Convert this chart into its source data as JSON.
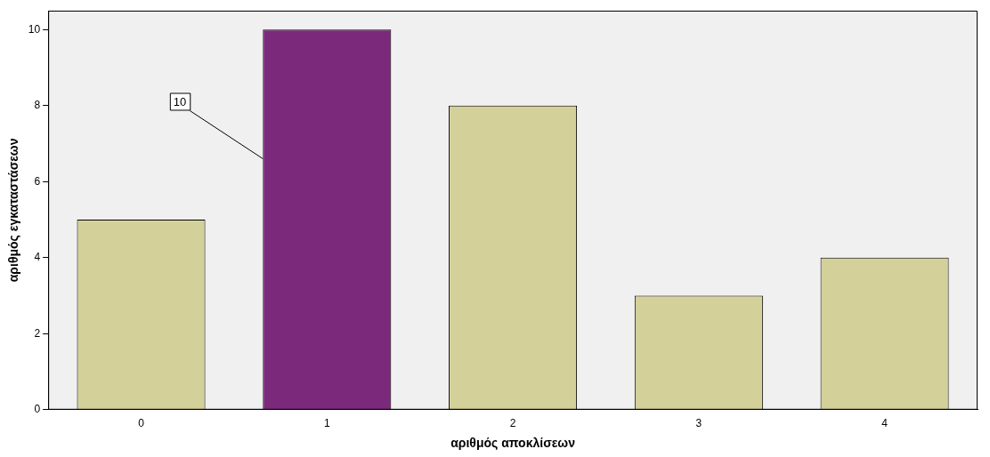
{
  "chart_data": {
    "type": "bar",
    "xlabel": "αριθμός αποκλίσεων",
    "ylabel": "αριθμός εγκαταστάσεων",
    "categories": [
      "0",
      "1",
      "2",
      "3",
      "4"
    ],
    "values": [
      5,
      10,
      8,
      3,
      4
    ],
    "colors": [
      "#d4d09a",
      "#7b2a7b",
      "#d4d09a",
      "#d4d09a",
      "#d4d09a"
    ],
    "value_labels": [
      null,
      "10",
      null,
      null,
      null
    ],
    "ylim": [
      0,
      10.5
    ],
    "yticks": [
      0,
      2,
      4,
      6,
      8,
      10
    ],
    "grid": false,
    "legend": false
  }
}
